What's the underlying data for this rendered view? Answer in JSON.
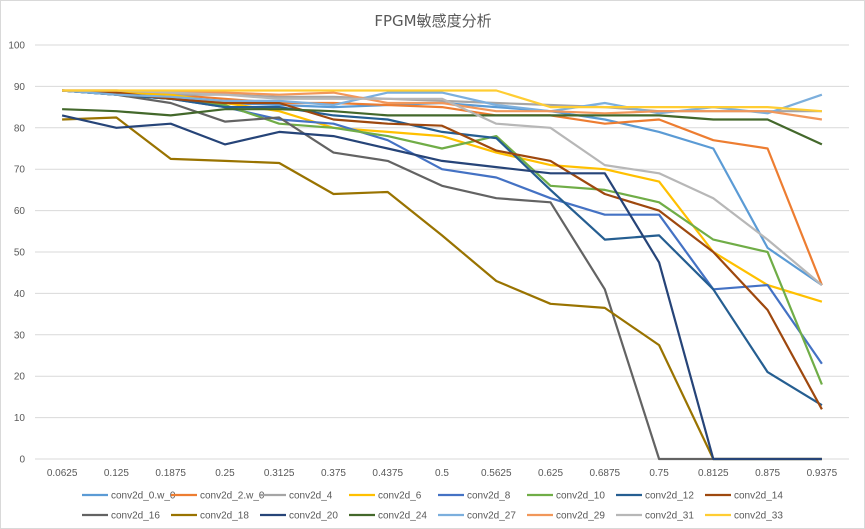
{
  "chart_data": {
    "type": "line",
    "title": "FPGM敏感度分析",
    "xlabel": "",
    "ylabel": "",
    "categories": [
      "0.0625",
      "0.125",
      "0.1875",
      "0.25",
      "0.3125",
      "0.375",
      "0.4375",
      "0.5",
      "0.5625",
      "0.625",
      "0.6875",
      "0.75",
      "0.8125",
      "0.875",
      "0.9375"
    ],
    "y_ticks": [
      "0",
      "10",
      "20",
      "30",
      "40",
      "50",
      "60",
      "70",
      "80",
      "90",
      "100"
    ],
    "ylim": [
      0,
      100
    ],
    "grid": true,
    "legend_position": "bottom",
    "series": [
      {
        "name": "conv2d_0.w_0",
        "color": "#5B9BD5",
        "values": [
          89,
          88,
          87,
          86,
          85.5,
          85,
          85.5,
          86,
          85,
          84,
          82,
          79,
          75,
          51,
          42
        ]
      },
      {
        "name": "conv2d_2.w_0",
        "color": "#ED7D31",
        "values": [
          89,
          88.5,
          88,
          87,
          86,
          86,
          85.5,
          85,
          83,
          83,
          81,
          82,
          77,
          75,
          42
        ]
      },
      {
        "name": "conv2d_4",
        "color": "#A5A5A5",
        "values": [
          89,
          88.5,
          88,
          88,
          87.5,
          87.5,
          87,
          86.5,
          86,
          85.5,
          85,
          84,
          84,
          84,
          84
        ]
      },
      {
        "name": "conv2d_6",
        "color": "#FFC000",
        "values": [
          89,
          88.5,
          88,
          86,
          84,
          80,
          79,
          78,
          74,
          71,
          70,
          67,
          50,
          42,
          38
        ]
      },
      {
        "name": "conv2d_8",
        "color": "#4472C4",
        "values": [
          89,
          88,
          87,
          85,
          82,
          81,
          77,
          70,
          68,
          63,
          59,
          59,
          41,
          42,
          23
        ]
      },
      {
        "name": "conv2d_10",
        "color": "#70AD47",
        "values": [
          89,
          88,
          87,
          85.5,
          81,
          80,
          78,
          75,
          78,
          66,
          65,
          62,
          53,
          50,
          18
        ]
      },
      {
        "name": "conv2d_12",
        "color": "#255E91",
        "values": [
          89,
          88,
          87,
          85,
          85,
          83,
          82,
          79,
          77.5,
          65,
          53,
          54,
          41,
          21,
          13
        ]
      },
      {
        "name": "conv2d_14",
        "color": "#9E480E",
        "values": [
          89,
          88.5,
          87,
          86,
          86,
          82,
          81,
          80.5,
          74.5,
          72,
          64,
          60,
          50,
          36,
          12
        ]
      },
      {
        "name": "conv2d_16",
        "color": "#636363",
        "values": [
          89,
          88,
          86,
          81.5,
          82.5,
          74,
          72,
          66,
          63,
          62,
          41,
          0,
          0,
          0,
          0
        ]
      },
      {
        "name": "conv2d_18",
        "color": "#997300",
        "values": [
          82,
          82.5,
          72.5,
          72,
          71.5,
          64,
          64.5,
          54,
          43,
          37.5,
          36.5,
          27.5,
          0,
          0,
          0
        ]
      },
      {
        "name": "conv2d_20",
        "color": "#264478",
        "values": [
          83,
          80,
          81,
          76,
          79,
          78,
          75,
          72,
          70.5,
          69,
          69,
          47.5,
          0,
          0,
          0
        ]
      },
      {
        "name": "conv2d_24",
        "color": "#43682B",
        "values": [
          84.5,
          84,
          83,
          84.5,
          84.5,
          84,
          83,
          83,
          83,
          83,
          83,
          83,
          82,
          82,
          76
        ]
      },
      {
        "name": "conv2d_27",
        "color": "#7CAFDD",
        "values": [
          89,
          88,
          87.5,
          86.5,
          86.5,
          85.5,
          88.5,
          88.5,
          85.5,
          84,
          86,
          83.5,
          85,
          83.5,
          88
        ]
      },
      {
        "name": "conv2d_29",
        "color": "#F1975A",
        "values": [
          89,
          89,
          88.5,
          88.5,
          88,
          88.5,
          86,
          86,
          84,
          84,
          83.5,
          84,
          84,
          84,
          82
        ]
      },
      {
        "name": "conv2d_31",
        "color": "#B7B7B7",
        "values": [
          89,
          89,
          88.5,
          88,
          87,
          87,
          87,
          87,
          81,
          80,
          71,
          69,
          63,
          53,
          42
        ]
      },
      {
        "name": "conv2d_33",
        "color": "#FFCD33",
        "values": [
          89,
          89,
          89,
          89,
          89,
          89,
          89,
          89,
          89,
          85,
          85,
          85,
          85,
          85,
          84
        ]
      }
    ]
  }
}
